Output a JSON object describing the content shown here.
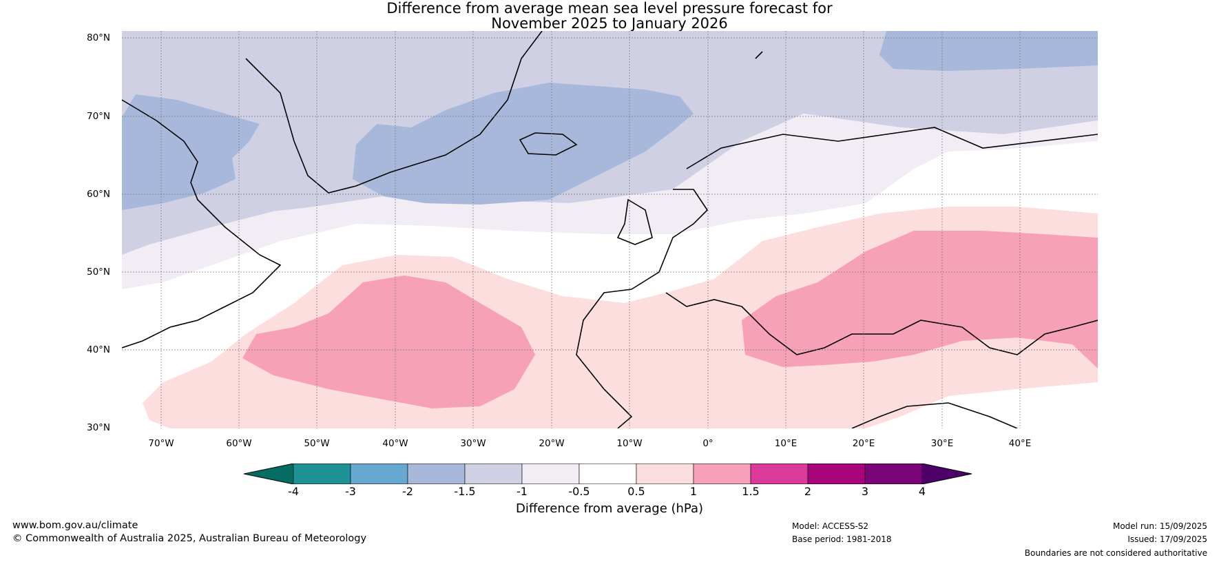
{
  "title": {
    "line1": "Difference from average mean sea level pressure forecast for",
    "line2": "November 2025 to January 2026"
  },
  "map": {
    "type": "choropleth",
    "region": "North Atlantic and Europe",
    "lat_labels": [
      "80°N",
      "70°N",
      "60°N",
      "50°N",
      "40°N",
      "30°N"
    ],
    "lon_labels": [
      "70°W",
      "60°W",
      "50°W",
      "40°W",
      "30°W",
      "20°W",
      "10°W",
      "0°",
      "10°E",
      "20°E",
      "30°E",
      "40°E"
    ],
    "gridlines": true
  },
  "colorbar": {
    "label": "Difference from average (hPa)",
    "ticks": [
      "-4",
      "-3",
      "-2",
      "-1.5",
      "-1",
      "-0.5",
      "0.5",
      "1",
      "1.5",
      "2",
      "3",
      "4"
    ],
    "colors": [
      "#046c62",
      "#1f9094",
      "#67a8d0",
      "#a7b8db",
      "#cfd0e4",
      "#f2ecf5",
      "#ffffff",
      "#fcdedf",
      "#f7a1b8",
      "#dc3a9a",
      "#a8057d",
      "#7b0476",
      "#4c0068"
    ]
  },
  "footer": {
    "website": "www.bom.gov.au/climate",
    "copyright": "© Commonwealth of Australia 2025, Australian Bureau of Meteorology",
    "model": "Model: ACCESS-S2",
    "base_period": "Base period: 1981-2018",
    "model_run": "Model run: 15/09/2025",
    "issued": "Issued: 17/09/2025",
    "disclaimer": "Boundaries are not considered authoritative"
  }
}
